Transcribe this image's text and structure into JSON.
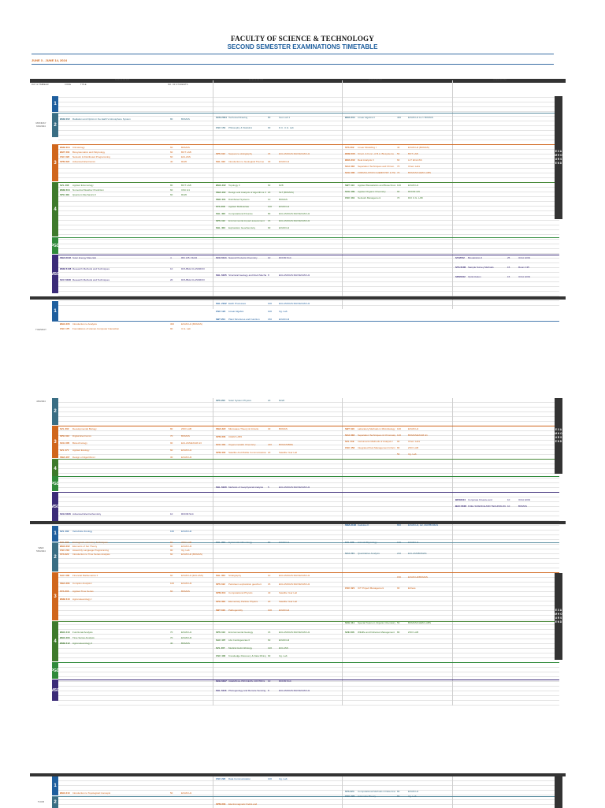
{
  "header": {
    "institution": "FACULTY OF SCIENCE & TECHNOLOGY",
    "title": "SECOND SEMESTER EXAMINATIONS TIMETABLE",
    "dates": "JUNE 3 - JUNE 14, 2024"
  },
  "columns": {
    "day_time": "DAY & TIME",
    "year": "YEAR",
    "code": "CODE",
    "title": "TITLE",
    "students": "NO. OF STUDENTS",
    "venue": "VENUE",
    "slot1": "9:00-11:00 AM",
    "slot2": "11:30-1:30 PM",
    "slot3": "2:00-4:00 PM",
    "slot4": "4:30-6:30 PM"
  },
  "bands": {
    "y1": "1",
    "y2": "2",
    "y3": "3",
    "y4": "4",
    "pgd": "PGD",
    "msc": "MSC"
  },
  "side_label": "E X A M  H O U R S  E N D",
  "days": {
    "monday": "MONDAY",
    "monday_date": "6/3/2024",
    "tuesday": "TUESDAY",
    "tuesday_date": "4/6/2024",
    "wed": "WED",
    "wed_date": "5/6/2024",
    "thurs": "THUR"
  },
  "p1": {
    "m_y2_s1": [
      [
        "BMB 202",
        "Radiation and Optics in the Earth's Atmosphere System",
        "80",
        "BOMAS"
      ]
    ],
    "m_y2_s2": [
      [
        "SCN 2024",
        "Technical Drawing",
        "80",
        "Geo Lab 1"
      ],
      [
        "CSC 154",
        "Philosophy & Statistics",
        "90",
        "D.C. U.G. Lab"
      ]
    ],
    "m_y2_s3": [
      [
        "BMA 204",
        "Linear Algebra II",
        "400",
        "EXAM H1 & 2 / BOMAS"
      ]
    ],
    "m_y3_s1": [
      [
        "BMB 304",
        "Climatology",
        "60",
        "BOMAS"
      ],
      [
        "BMT 303",
        "Biosystematics and Palynology",
        "60",
        "BOT LAB"
      ],
      [
        "CSC 322",
        "Network & Distributed Programming",
        "60",
        "ECLASS"
      ],
      [
        "SPM 322",
        "Advanced Electronics",
        "40",
        "R220"
      ]
    ],
    "m_y3_s2": [
      [
        "SPS 312",
        "Sequence stratigraphy",
        "15",
        "ECLASS/GIS MAX/EXAM H1"
      ],
      [
        "SGL 312",
        "Introduction to Geological Thermo",
        "30",
        "EXAM H1"
      ]
    ],
    "m_y3_s3": [
      [
        "STA 302",
        "Linear Modelling I",
        "40",
        "EXAM H2 (BOMAS)"
      ],
      [
        "BMB 306",
        "Struct. & Func. of B.A. Biosystems",
        "50",
        "BOT LAB"
      ],
      [
        "BMA 302",
        "Real Analysis II",
        "60",
        "LLT ECLASS"
      ],
      [
        "SCA 303",
        "Separation Techniques and Chrom.",
        "70",
        "Chem Labs"
      ],
      [
        "SCH 306",
        "FORMULATION CHEMISTRY & TECHNOLOGY",
        "70",
        "BOMAS/CHEM LABS"
      ]
    ],
    "m_y4_s1": [
      [
        "SZL 408",
        "Applied Entomology",
        "80",
        "BOT LAB"
      ],
      [
        "BMB 404",
        "Numerical Weather Prediction",
        "60",
        "CSC H1"
      ],
      [
        "SPH 409",
        "Quantum Mechanics II",
        "60",
        "R220"
      ]
    ],
    "m_y4_s2": [
      [
        "BMA 402",
        "Topology II",
        "60",
        "D28"
      ],
      [
        "SMA 402",
        "Design and Analysis of Algorithms II",
        "20",
        "SLT (BOMAS)"
      ],
      [
        "SMC 401",
        "Distributed Systems",
        "10",
        "BOMAS"
      ],
      [
        "STA 408",
        "Applied Multivariate",
        "100",
        "EXAM H1"
      ],
      [
        "SGL 403",
        "Computational Finance",
        "80",
        "ECLASS/GIS MAX/EXAM H1"
      ],
      [
        "SPS 412",
        "Environmental impact assessment",
        "15",
        "ECLASS/GIS MAX/EXAM H1"
      ],
      [
        "SGL 404",
        "Exploration Geochemistry",
        "90",
        "EXAM H1"
      ]
    ],
    "m_y4_s3": [
      [
        "SBT 413",
        "Applied Biostatistics and Biotechnology",
        "100",
        "EXAM H1"
      ],
      [
        "SCH 409",
        "Applied Organic Chemistry",
        "90",
        "ROOM 115"
      ],
      [
        "CSC 431",
        "Network Management",
        "70",
        "DCI U.G. LAB"
      ]
    ],
    "m_msc_s1": [
      [
        "SMA 6102",
        "Solar Energy Materials",
        "4",
        "RM 135 / R222"
      ],
      [
        "BMB 6108",
        "Research Methods and Techniques",
        "10",
        "DOUBLE CLASSROOM"
      ],
      [
        "SCC 6108",
        "Research Methods and Techniques",
        "20",
        "DOUBLE CLASSROOM"
      ]
    ],
    "m_msc_s2": [
      [
        "SCH 6141",
        "Natural Products Chemistry",
        "10",
        "ROOM S14"
      ],
      [
        "SGL 6105",
        "Structural Geology and Rock Mechanics",
        "8",
        "ECLASS/GIS MAX/EXAM H1"
      ]
    ],
    "m_msc_s4": [
      [
        "ST.M742",
        "Biostatistics II",
        "25",
        "ICCA G001"
      ],
      [
        "STA 6106",
        "Sample Survey Methods",
        "15",
        "Room 135"
      ],
      [
        "SDS6102",
        "Optimization",
        "15",
        "ICCA G001"
      ]
    ],
    "t_y1_s2": [
      [
        "SGL 2102",
        "Earth Processes",
        "100",
        "ECLASS/GIS MAX/EXAM H1"
      ],
      [
        "CSC 124",
        "Linear Algebra",
        "100",
        "Ug. Lab"
      ],
      [
        "SBT 204",
        "Plant Structures and Function",
        "150",
        "EXAM H3"
      ]
    ],
    "t_y1_s1": [
      [
        "BMA 205",
        "Introduction to Analysis",
        "300",
        "EXAM H1 (BOMAS)"
      ],
      [
        "CSC 175",
        "Foundations of Human Computer Interaction",
        "90",
        "U.G. Lab"
      ]
    ]
  },
  "p2": {
    "y2_s2": [
      [
        "SPS 200",
        "Solar System Physics",
        "20",
        "R220"
      ]
    ],
    "y3_s1": [
      [
        "SZL 302",
        "Developmental Biology",
        "80",
        "ZOO LAB"
      ],
      [
        "SPH 312",
        "Digital Electronics",
        "70",
        "BOMAS"
      ],
      [
        "SCH 305",
        "Biotechnology",
        "90",
        "ECLASS/EXAM H3"
      ],
      [
        "SZL 471",
        "Applied Ecology",
        "60",
        "EXAM H1"
      ],
      [
        "SMA 407",
        "Design of Algorithms I",
        "30",
        "EXAM H3"
      ]
    ],
    "y3_s2": [
      [
        "SMA 322",
        "Microwave Theory & Circuits",
        "30",
        "BOMAS"
      ],
      [
        "SPM 306",
        "CHEM LABS",
        "",
        " "
      ],
      [
        "SCH 404",
        "Organometallic Chemistry",
        "220",
        "BOMAS/BMH"
      ],
      [
        "SPM 402",
        "Satellite And Mobile Communication System",
        "20",
        "Satellite Year Lab"
      ]
    ],
    "y3_s3": [
      [
        "SBT 310",
        "Laboratory Methods in Microbiology",
        "100",
        "EXAM H1"
      ],
      [
        "SCA 303",
        "Separation Techniques & Chromatography",
        "120",
        "BOMAS/EXAM H1"
      ],
      [
        "SZL 419",
        "Instruments Methods of Analysis I",
        "90",
        "Chem Labs"
      ],
      [
        "CSC 452",
        "Integrated Pest Management Information Systems Control and Audit",
        "80",
        "ZOO LAB"
      ],
      [
        "",
        "",
        "50",
        "Ug. Lab"
      ]
    ],
    "y4_s3": [
      [
        "BDS6104",
        "Corporate Finance and",
        "10",
        "ICCA G001"
      ],
      [
        "BAC 6106",
        "FUEL SCIENCE AND TECHNOLOGY",
        "10",
        "BOMAS"
      ]
    ],
    "pgd_s2": [
      [
        "SGL 6120",
        "Methods of Geophysical Analysis",
        "5",
        "ECLASS/GIS MAX/EXAM H1"
      ]
    ],
    "msc_s1": [
      [
        "SCH 6106",
        "Advanced Electrochemistry",
        "10",
        "ROOM S14"
      ]
    ],
    "w_y1_s1": [
      [
        "SZL 102",
        "Vertebrate Zoology",
        "160",
        "EXAM H2"
      ]
    ],
    "w_y1_s3": [
      [
        "SMA 2102",
        "Calculus II",
        "800",
        "EXAM H1, H2, MAT/BOMAS"
      ]
    ],
    "w_y2_s1": [
      [
        "SZL 205",
        "Ecological Laboratory Techniques",
        "60",
        "ZOO LAB"
      ],
      [
        "BMA 202",
        "Elements of Set Theory",
        "80",
        "EXAM H3"
      ],
      [
        "CSC 216",
        "Assembly Language Programming",
        "90",
        "Ug. Lab"
      ],
      [
        "STA 222",
        "Introduction to Time Series Analysis",
        "60",
        "EXAM H2 (BOMAS)"
      ]
    ],
    "w_y2_s2": [
      [
        "SGL 203",
        "Systematic Mineralogy",
        "80",
        "EXAM H1"
      ]
    ],
    "w_y2_s3": [
      [
        "SZL 223",
        "Animal Physiology",
        "100",
        "EXAM H1"
      ],
      [
        "SCA 201",
        "Quantitative Analysis",
        "210",
        "ECLASS/BOMAS"
      ]
    ],
    "w_y3_s1": [
      [
        "SAC 306",
        "Financial Mathematics II",
        "60",
        "EXAM H1 (ECLASS)"
      ],
      [
        "SMA 306",
        "Complex Analysis I",
        "100",
        "EXAM H3"
      ],
      [
        "STA 306",
        "Applied Time Series",
        "60",
        "BOMAS"
      ],
      [
        "BMB 310",
        "Agrometeorology I",
        "",
        ""
      ]
    ],
    "w_y3_s2": [
      [
        "SGL 304",
        "Stratigraphy",
        "10",
        "ECLASS/GIS MAX/EXAM H1"
      ],
      [
        "SPS 312",
        "Petroleum exploration geochem",
        "15",
        "ECLASS/GIS MAX/EXAM H1"
      ],
      [
        "SPM 313",
        "Computational Physics",
        "40",
        "Satellite Year Lab"
      ],
      [
        "SPH 306",
        "Elementary Particle Physics",
        "20",
        "Satellite Year Lab"
      ],
      [
        "SBT 310",
        "Pathogenicity",
        "100",
        "EXAM H2"
      ]
    ],
    "w_y3_s3": [
      [
        "",
        "",
        "150",
        "EXAM H2/BOMAS"
      ],
      [
        "CSC 321",
        "ICT Project Management",
        "90",
        "ECless"
      ]
    ],
    "w_y4_s1": [
      [
        "BMA 410",
        "Functional Analysis",
        "70",
        "EXAM H1"
      ],
      [
        "BMA 403",
        "Time Series Analysis",
        "70",
        "EXAM H3"
      ],
      [
        "BMB 412",
        "Agrometeorology II",
        "40",
        "BOMAS"
      ]
    ],
    "w_y4_s2": [
      [
        "SPS 413",
        "Environmental Geology",
        "15",
        "ECLASS/GIS MAX/EXAM H1"
      ],
      [
        "SAC 407",
        "Life Contingencies II",
        "60",
        "EXAM H3"
      ],
      [
        "SZL 407",
        "Medical Helminthology",
        "120",
        "ECLASS"
      ],
      [
        "CSC 402",
        "Knowledge Discovery & Data Mining",
        "90",
        "Ug. Lab"
      ]
    ],
    "w_y4_s3": [
      [
        "SCH 411",
        "Special Topics in Organic Chemistry",
        "50",
        "BOMAS/CHEM LABS"
      ],
      [
        "SZE 406",
        "Wildlife and Fisheries Management",
        "80",
        "ZOO LAB"
      ]
    ],
    "w_msc_s2": [
      [
        "SCH 6107",
        "CHEMICAL PROCESS CONTROL",
        "10",
        "ROOM S14"
      ],
      [
        "SGL 6113",
        "Photogeology and Remote Sensing",
        "8",
        "ECLASS/GIS MAX/EXAM H1"
      ]
    ]
  },
  "p3": {
    "y1_s2": [
      [
        "CSC 223",
        "Data Communication",
        "100",
        "Ug. Lab"
      ]
    ],
    "y1_s1": [
      [
        "BMA 210",
        "Introduction to Topological Concepts",
        "50",
        "EXAM H1"
      ]
    ],
    "y1_s3": [
      [
        "STA 224",
        "Computational Methods & Data Analysis II",
        "80",
        "EXAM H1"
      ],
      [
        "CSC 222",
        "Automata Theory",
        "80",
        "Ug. Lab"
      ]
    ],
    "y2_s2": [
      [
        "SPM 203",
        "Electromagnetic Fields and",
        "",
        ""
      ]
    ]
  }
}
